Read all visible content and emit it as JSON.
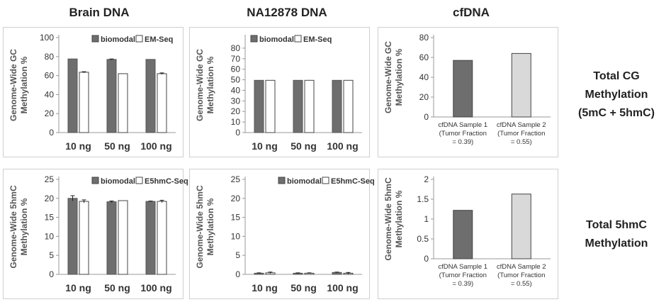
{
  "columns": [
    "Brain DNA",
    "NA12878 DNA",
    "cfDNA"
  ],
  "row_labels": {
    "top": [
      "Total CG",
      "Methylation",
      "(5mC + 5hmC)"
    ],
    "bottom": [
      "Total 5hmC",
      "Methylation"
    ]
  },
  "colors": {
    "biomodal": "#6e6e6e",
    "other": "#ffffff",
    "cf_sample1": "#6e6e6e",
    "cf_sample2": "#d9d9d9",
    "axis": "#999999"
  },
  "chart_data": [
    {
      "panel": "brain-gc",
      "type": "bar",
      "ylabel": [
        "Genome-Wide GC",
        "Methylation %"
      ],
      "categories": [
        "10 ng",
        "50 ng",
        "100 ng"
      ],
      "ylim": [
        0,
        100
      ],
      "yticks": [
        0,
        20,
        40,
        60,
        80,
        100
      ],
      "legend_position": "top-right",
      "series": [
        {
          "name": "biomodal",
          "values": [
            77.5,
            77,
            77
          ],
          "errors": [
            0,
            0.5,
            0
          ]
        },
        {
          "name": "EM-Seq",
          "values": [
            63.5,
            62,
            62
          ],
          "errors": [
            0.6,
            0,
            0.8
          ]
        }
      ]
    },
    {
      "panel": "na12878-gc",
      "type": "bar",
      "ylabel": [
        "Genome-Wide GC",
        "Methylation %"
      ],
      "categories": [
        "10 ng",
        "50 ng",
        "100 ng"
      ],
      "ylim": [
        0,
        90
      ],
      "yticks": [
        0,
        10,
        20,
        30,
        40,
        50,
        60,
        70,
        80
      ],
      "legend_position": "top-left",
      "series": [
        {
          "name": "biomodal",
          "values": [
            49.5,
            49.5,
            49.5
          ],
          "errors": [
            0,
            0,
            0
          ]
        },
        {
          "name": "EM-Seq",
          "values": [
            49.5,
            49.5,
            49.5
          ],
          "errors": [
            0,
            0,
            0
          ]
        }
      ]
    },
    {
      "panel": "cfdna-gc",
      "type": "bar",
      "ylabel": [
        "Genome-Wide GC",
        "Methylation %"
      ],
      "categories": [
        [
          "cfDNA Sample 1",
          "(Tumor Fraction",
          "= 0.39)"
        ],
        [
          "cfDNA Sample 2",
          "(Tumor Fraction",
          "= 0.55)"
        ]
      ],
      "ylim": [
        0,
        80
      ],
      "yticks": [
        0,
        20,
        40,
        60,
        80
      ],
      "values": [
        57,
        64
      ]
    },
    {
      "panel": "brain-5hmc",
      "type": "bar",
      "ylabel": [
        "Genome-Wide 5hmC",
        "Methylation %"
      ],
      "categories": [
        "10 ng",
        "50 ng",
        "100 ng"
      ],
      "ylim": [
        0,
        25
      ],
      "yticks": [
        0,
        5,
        10,
        15,
        20,
        25
      ],
      "legend_position": "top-right",
      "series": [
        {
          "name": "biomodal",
          "values": [
            20,
            19.1,
            19.2
          ],
          "errors": [
            0.7,
            0.2,
            0.1
          ]
        },
        {
          "name": "E5hmC-Seq",
          "values": [
            19.2,
            19.4,
            19.2
          ],
          "errors": [
            0.4,
            0,
            0.3
          ]
        }
      ]
    },
    {
      "panel": "na12878-5hmc",
      "type": "bar",
      "ylabel": [
        "Genome-Wide 5hmC",
        "Methylation %"
      ],
      "categories": [
        "10 ng",
        "50 ng",
        "100 ng"
      ],
      "ylim": [
        0,
        25
      ],
      "yticks": [
        0,
        5,
        10,
        15,
        20,
        25
      ],
      "legend_position": "top-right",
      "series": [
        {
          "name": "biomodal",
          "values": [
            0.3,
            0.3,
            0.5
          ],
          "errors": [
            0.1,
            0.1,
            0.1
          ]
        },
        {
          "name": "E5hmC-Seq",
          "values": [
            0.4,
            0.3,
            0.3
          ],
          "errors": [
            0.2,
            0.1,
            0.2
          ]
        }
      ]
    },
    {
      "panel": "cfdna-5hmc",
      "type": "bar",
      "ylabel": [
        "Genome-Wide 5hmC",
        "Methylation %"
      ],
      "categories": [
        [
          "cfDNA Sample 1",
          "(Tumor Fraction",
          "= 0.39)"
        ],
        [
          "cfDNA Sample 2",
          "(Tumor Fraction",
          "= 0.55)"
        ]
      ],
      "ylim": [
        0,
        2
      ],
      "yticks": [
        0,
        0.5,
        1,
        1.5,
        2
      ],
      "values": [
        1.22,
        1.63
      ]
    }
  ]
}
